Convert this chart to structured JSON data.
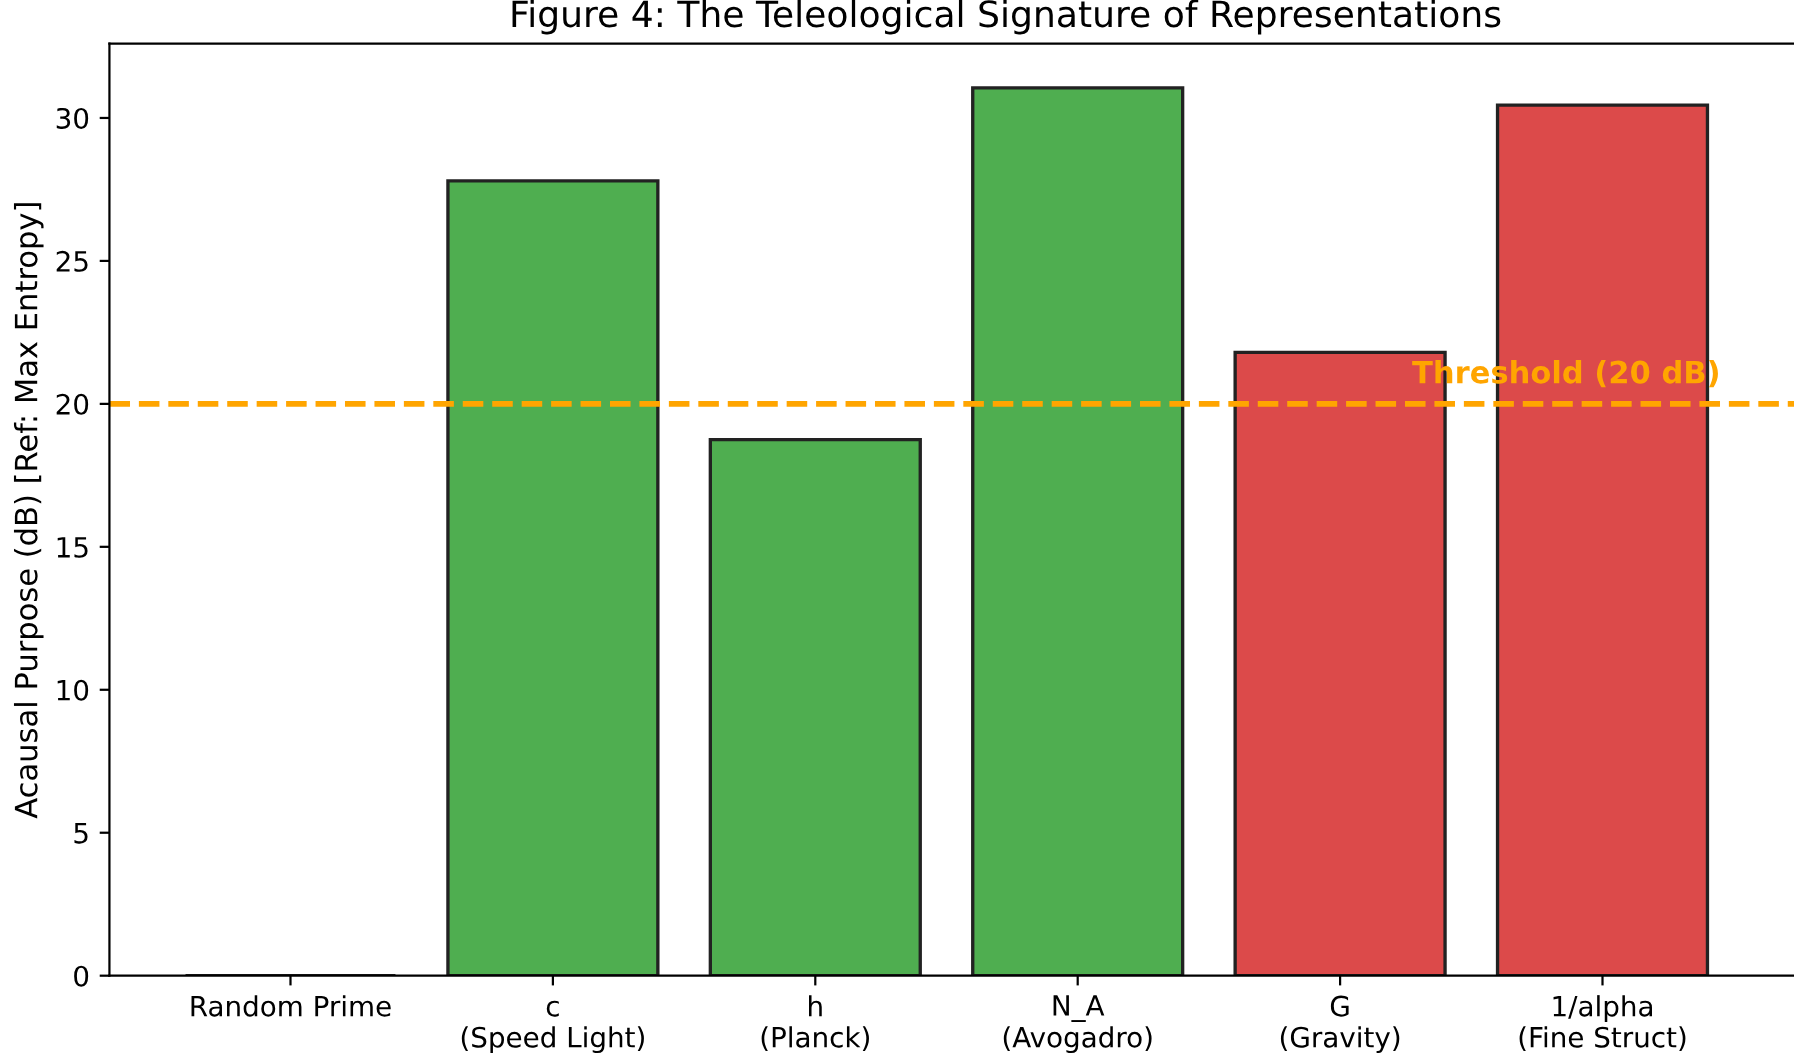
{
  "chart_data": {
    "type": "bar",
    "title": "Figure 4: The Teleological Signature of Representations",
    "ylabel": "Acausal Purpose (dB) [Ref: Max Entropy]",
    "categories": [
      "Random Prime",
      "c\n(Speed Light)",
      "h\n(Planck)",
      "N_A\n(Avogadro)",
      "G\n(Gravity)",
      "1/alpha\n(Fine Struct)"
    ],
    "values": [
      0,
      27.8,
      18.75,
      31.05,
      21.8,
      30.45
    ],
    "colors": [
      "#222222",
      "#4fae50",
      "#4fae50",
      "#4fae50",
      "#dc4a4a",
      "#dc4a4a"
    ],
    "ylim": [
      0,
      32.6
    ],
    "yticks": [
      0,
      5,
      10,
      15,
      20,
      25,
      30
    ],
    "grid": false,
    "ref_lines": [
      {
        "axis": "y",
        "value": 20,
        "label": "Threshold (20 dB)",
        "color": "#ffa500",
        "line_style": "dashed"
      }
    ]
  }
}
